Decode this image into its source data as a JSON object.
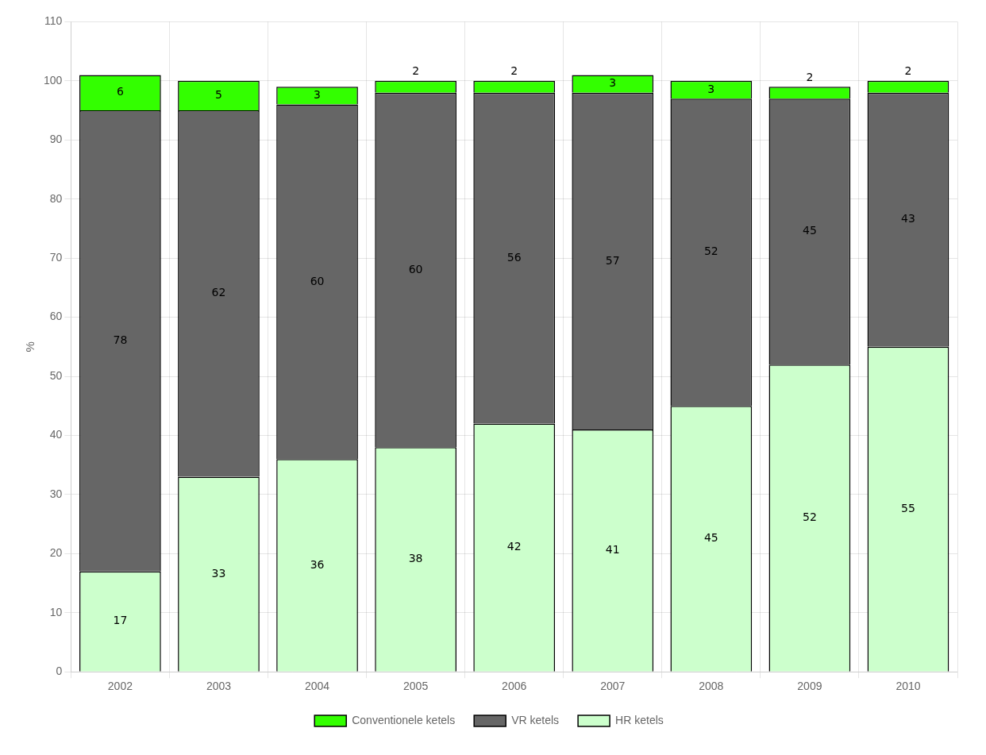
{
  "chart_data": {
    "type": "bar",
    "stacked": true,
    "categories": [
      "2002",
      "2003",
      "2004",
      "2005",
      "2006",
      "2007",
      "2008",
      "2009",
      "2010"
    ],
    "series": [
      {
        "name": "HR ketels",
        "color": "#ccffcc",
        "values": [
          17,
          33,
          36,
          38,
          42,
          41,
          45,
          52,
          55
        ]
      },
      {
        "name": "VR ketels",
        "color": "#666666",
        "values": [
          78,
          62,
          60,
          60,
          56,
          57,
          52,
          45,
          43
        ]
      },
      {
        "name": "Conventionele ketels",
        "color": "#33ff00",
        "values": [
          6,
          5,
          3,
          2,
          2,
          3,
          3,
          2,
          2
        ]
      }
    ],
    "ylabel": "%",
    "ylim": [
      0,
      110
    ],
    "yticks": [
      0,
      10,
      20,
      30,
      40,
      50,
      60,
      70,
      80,
      90,
      100,
      110
    ],
    "grid": true,
    "legend": "bottom",
    "data_labels": true
  }
}
